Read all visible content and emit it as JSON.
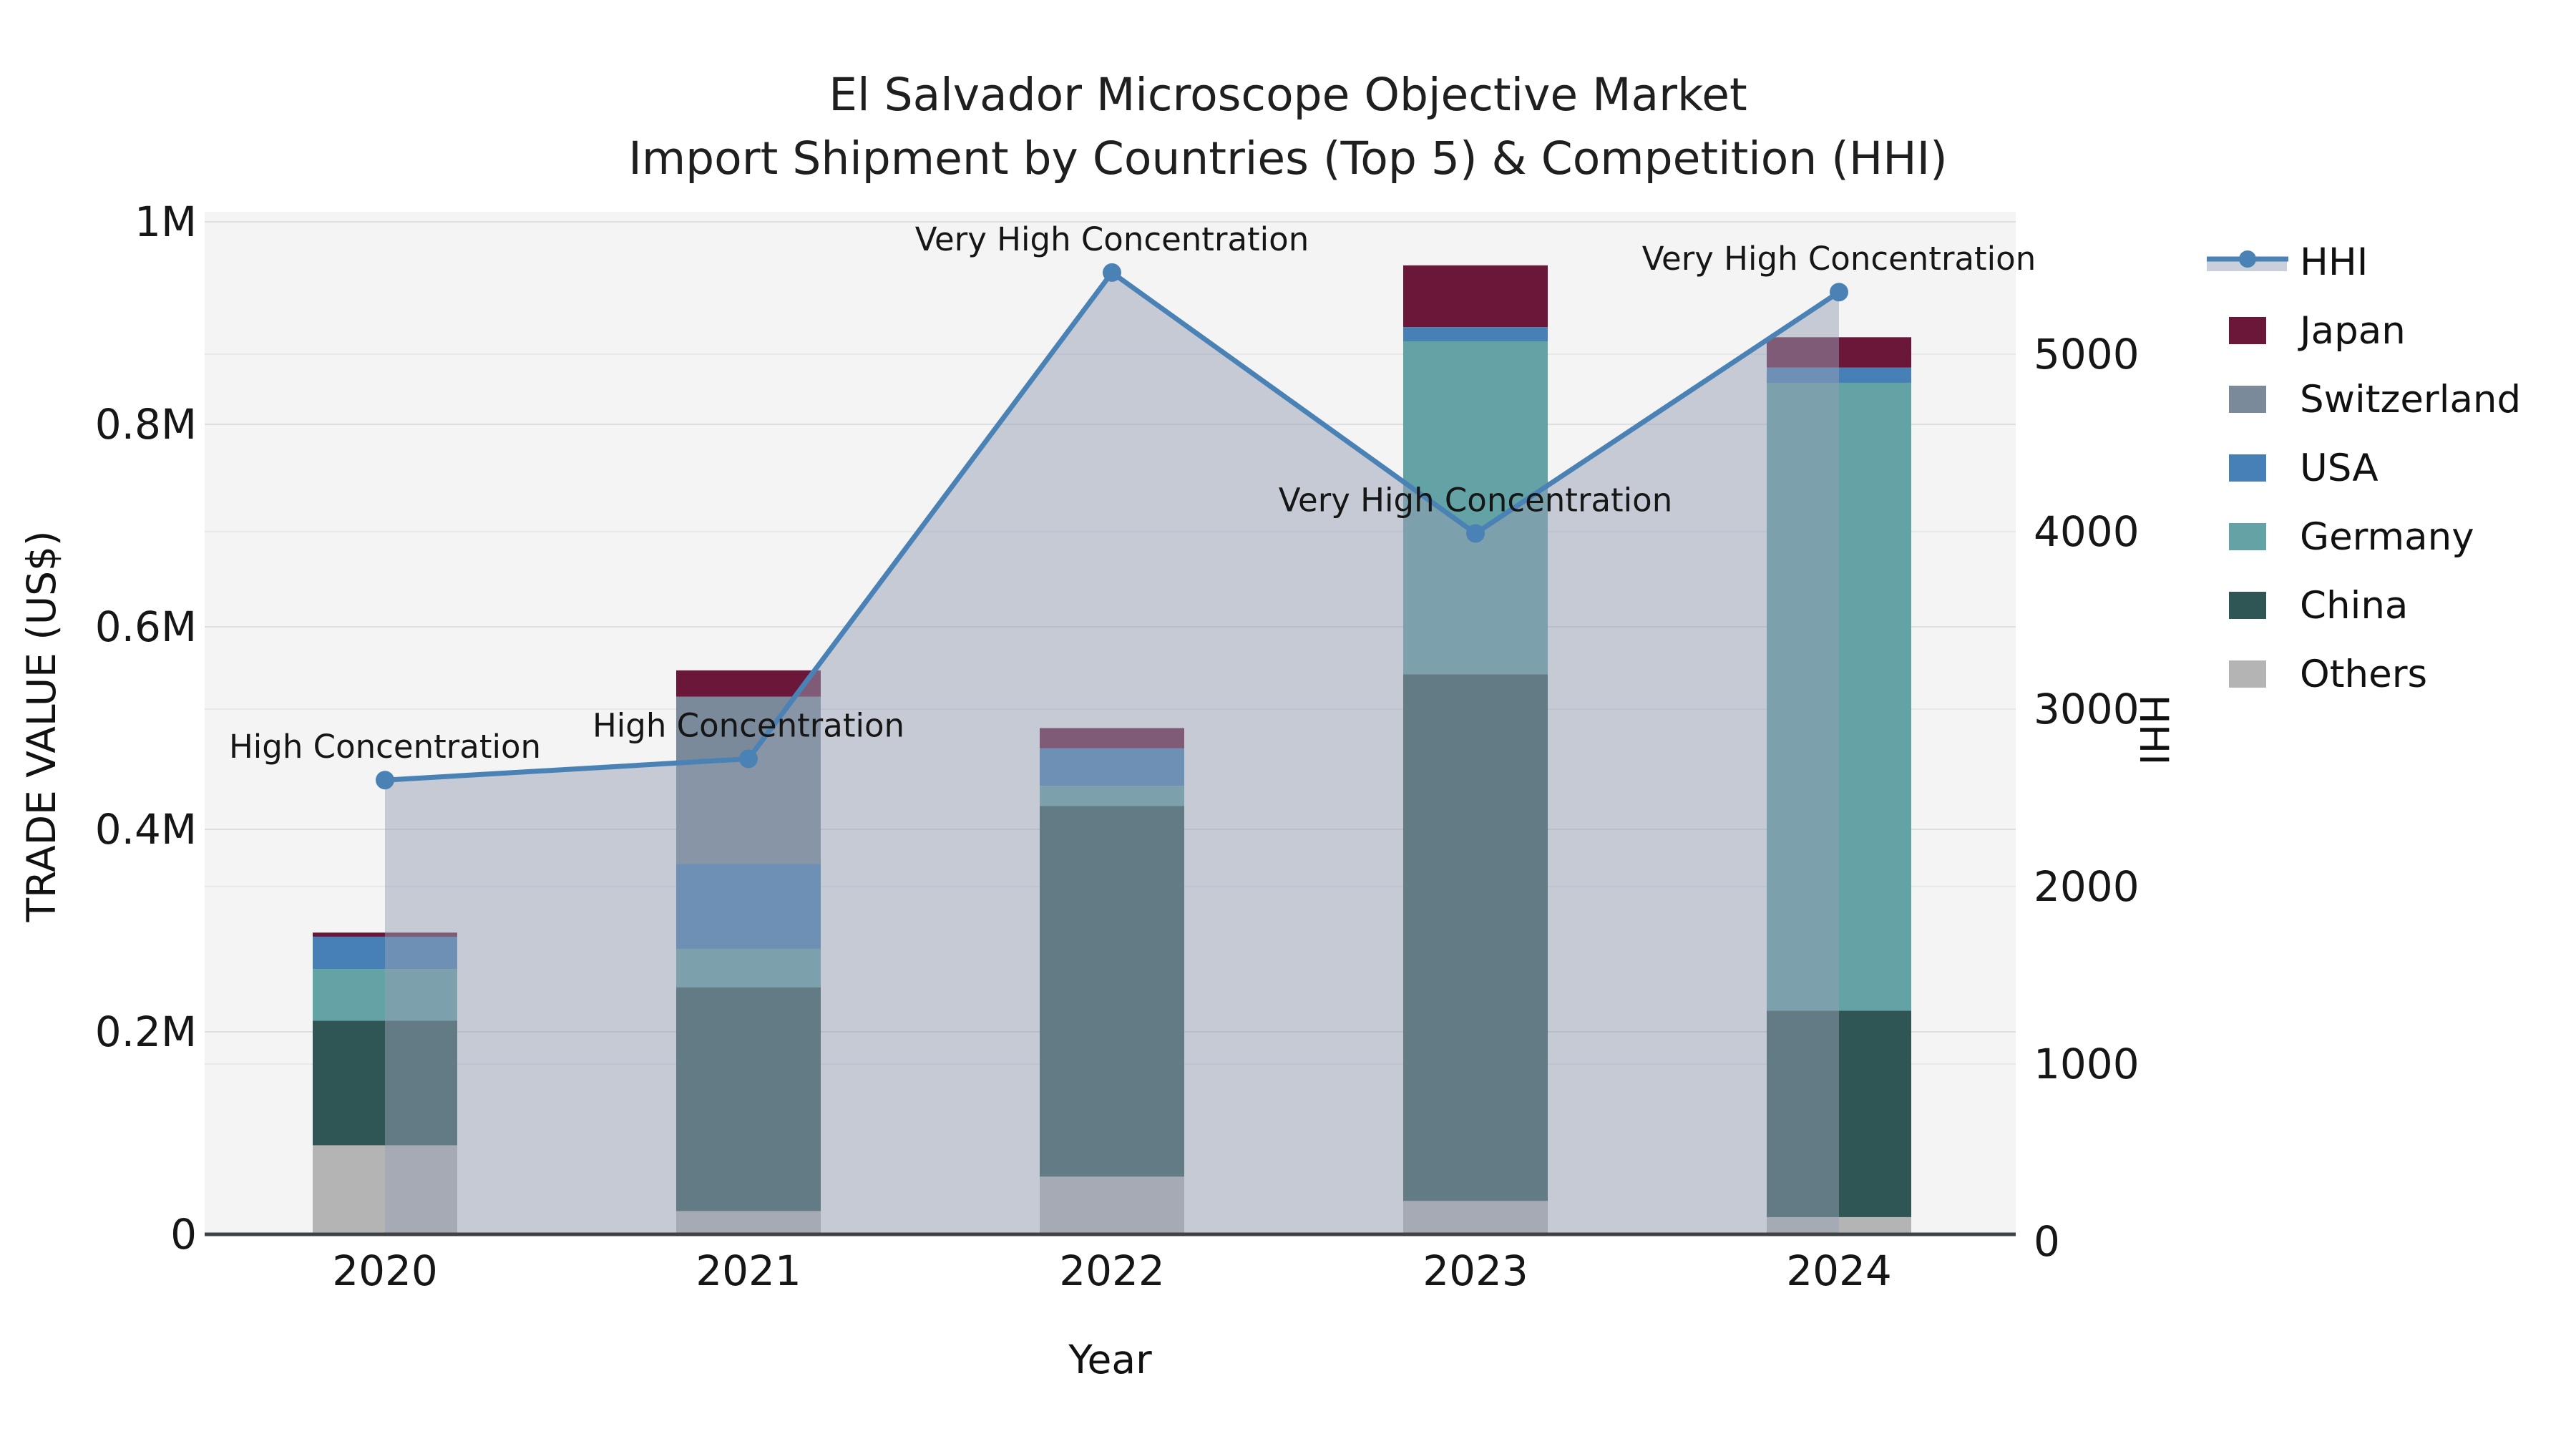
{
  "title": {
    "line1": "El Salvador Microscope Objective Market",
    "line2": "Import Shipment by Countries (Top 5) & Competition (HHI)"
  },
  "chart_data": {
    "type": "bar",
    "subtype": "stacked-bars-with-line-area-overlay",
    "categories": [
      "2020",
      "2021",
      "2022",
      "2023",
      "2024"
    ],
    "series": [
      {
        "name": "Japan",
        "color": "#6b173a",
        "values": [
          4000,
          26000,
          20000,
          61000,
          30000
        ]
      },
      {
        "name": "Switzerland",
        "color": "#7a8a9b",
        "values": [
          0,
          165000,
          0,
          0,
          0
        ]
      },
      {
        "name": "USA",
        "color": "#4680b7",
        "values": [
          32000,
          84000,
          37000,
          14000,
          15000
        ]
      },
      {
        "name": "Germany",
        "color": "#63a3a6",
        "values": [
          51000,
          38000,
          20000,
          329000,
          620000
        ]
      },
      {
        "name": "China",
        "color": "#2f5654",
        "values": [
          123000,
          221000,
          366000,
          520000,
          204000
        ]
      },
      {
        "name": "Others",
        "color": "#b4b4b4",
        "values": [
          88000,
          23000,
          57000,
          33000,
          17000
        ]
      }
    ],
    "stack_note": "series listed top-to-bottom as in legend; stacked bottom-to-top as Others, China, Germany, USA, Switzerland, Japan",
    "totals": [
      298000,
      557000,
      500000,
      957000,
      886000
    ],
    "hhi": {
      "name": "HHI",
      "line_color": "#4a82b6",
      "area_color": "rgba(150,160,180,0.5)",
      "values": [
        2600,
        2720,
        5460,
        3990,
        5350
      ]
    },
    "annotations": [
      "High Concentration",
      "High Concentration",
      "Very High Concentration",
      "Very High Concentration",
      "Very High Concentration"
    ],
    "xlabel": "Year",
    "ylabel_left": "TRADE VALUE (US$)",
    "ylabel_right": "HHI",
    "yticks_left": [
      "0",
      "0.2M",
      "0.4M",
      "0.6M",
      "0.8M",
      "1M"
    ],
    "ylim_left": [
      0,
      1000000
    ],
    "yticks_right": [
      "0",
      "1000",
      "2000",
      "3000",
      "4000",
      "5000"
    ],
    "ylim_right": [
      0,
      5000
    ],
    "grid": true,
    "legend_position": "right",
    "legend_items": [
      "HHI",
      "Japan",
      "Switzerland",
      "USA",
      "Germany",
      "China",
      "Others"
    ]
  }
}
